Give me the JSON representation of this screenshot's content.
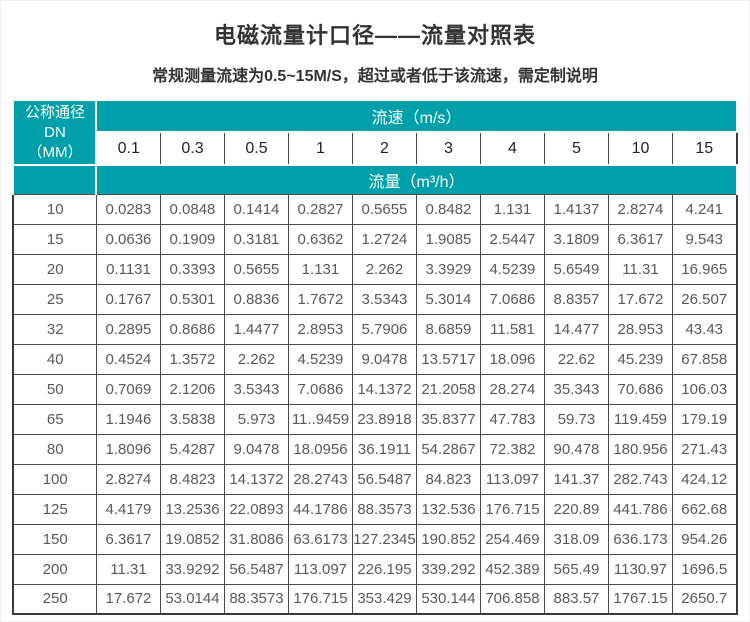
{
  "page": {
    "title": "电磁流量计口径——流量对照表",
    "subtitle": "常规测量流速为0.5~15M/S，超过或者低于该流速，需定制说明"
  },
  "colors": {
    "header_teal": "#00a0aa",
    "grid_line": "#4a4a4a",
    "data_text": "#595959"
  },
  "table": {
    "corner": {
      "line1": "公称通径DN",
      "line2": "（MM）"
    },
    "velocity_header": "流速（m/s）",
    "flow_header": "流量（m³/h）",
    "velocities": [
      "0.1",
      "0.3",
      "0.5",
      "1",
      "2",
      "3",
      "4",
      "5",
      "10",
      "15"
    ],
    "rows": [
      {
        "dn": "10",
        "values": [
          "0.0283",
          "0.0848",
          "0.1414",
          "0.2827",
          "0.5655",
          "0.8482",
          "1.131",
          "1.4137",
          "2.8274",
          "4.241"
        ]
      },
      {
        "dn": "15",
        "values": [
          "0.0636",
          "0.1909",
          "0.3181",
          "0.6362",
          "1.2724",
          "1.9085",
          "2.5447",
          "3.1809",
          "6.3617",
          "9.543"
        ]
      },
      {
        "dn": "20",
        "values": [
          "0.1131",
          "0.3393",
          "0.5655",
          "1.131",
          "2.262",
          "3.3929",
          "4.5239",
          "5.6549",
          "11.31",
          "16.965"
        ]
      },
      {
        "dn": "25",
        "values": [
          "0.1767",
          "0.5301",
          "0.8836",
          "1.7672",
          "3.5343",
          "5.3014",
          "7.0686",
          "8.8357",
          "17.672",
          "26.507"
        ]
      },
      {
        "dn": "32",
        "values": [
          "0.2895",
          "0.8686",
          "1.4477",
          "2.8953",
          "5.7906",
          "8.6859",
          "11.581",
          "14.477",
          "28.953",
          "43.43"
        ]
      },
      {
        "dn": "40",
        "values": [
          "0.4524",
          "1.3572",
          "2.262",
          "4.5239",
          "9.0478",
          "13.5717",
          "18.096",
          "22.62",
          "45.239",
          "67.858"
        ]
      },
      {
        "dn": "50",
        "values": [
          "0.7069",
          "2.1206",
          "3.5343",
          "7.0686",
          "14.1372",
          "21.2058",
          "28.274",
          "35.343",
          "70.686",
          "106.03"
        ]
      },
      {
        "dn": "65",
        "values": [
          "1.1946",
          "3.5838",
          "5.973",
          "11..9459",
          "23.8918",
          "35.8377",
          "47.783",
          "59.73",
          "119.459",
          "179.19"
        ]
      },
      {
        "dn": "80",
        "values": [
          "1.8096",
          "5.4287",
          "9.0478",
          "18.0956",
          "36.1911",
          "54.2867",
          "72.382",
          "90.478",
          "180.956",
          "271.43"
        ]
      },
      {
        "dn": "100",
        "values": [
          "2.8274",
          "8.4823",
          "14.1372",
          "28.2743",
          "56.5487",
          "84.823",
          "113.097",
          "141.37",
          "282.743",
          "424.12"
        ]
      },
      {
        "dn": "125",
        "values": [
          "4.4179",
          "13.2536",
          "22.0893",
          "44.1786",
          "88.3573",
          "132.536",
          "176.715",
          "220.89",
          "441.786",
          "662.68"
        ]
      },
      {
        "dn": "150",
        "values": [
          "6.3617",
          "19.0852",
          "31.8086",
          "63.6173",
          "127.2345",
          "190.852",
          "254.469",
          "318.09",
          "636.173",
          "954.26"
        ]
      },
      {
        "dn": "200",
        "values": [
          "11.31",
          "33.9292",
          "56.5487",
          "113.097",
          "226.195",
          "339.292",
          "452.389",
          "565.49",
          "1130.97",
          "1696.5"
        ]
      },
      {
        "dn": "250",
        "values": [
          "17.672",
          "53.0144",
          "88.3573",
          "176.715",
          "353.429",
          "530.144",
          "706.858",
          "883.57",
          "1767.15",
          "2650.7"
        ]
      }
    ]
  }
}
